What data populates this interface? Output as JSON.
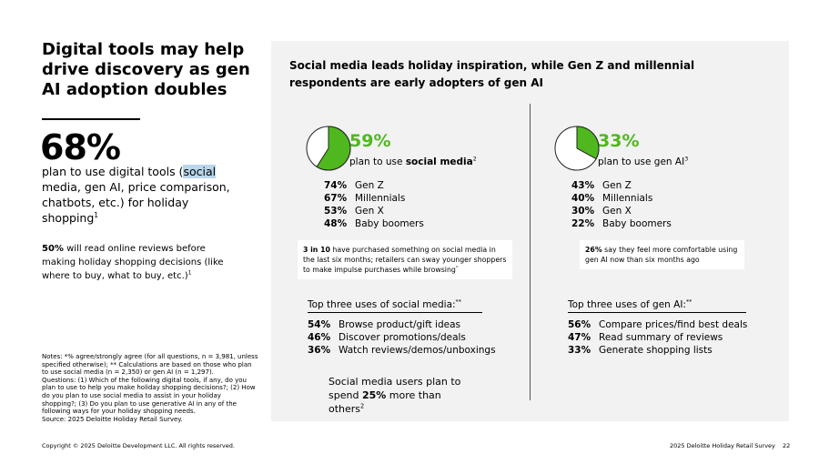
{
  "left": {
    "title": "Digital tools may help drive discovery as gen AI adoption doubles",
    "stat": "68%",
    "stat_desc": {
      "pre": "plan to use digital tools (",
      "highlight": "social",
      "post": " media, gen AI, price comparison, chatbots, etc.) for holiday shopping",
      "sup": "1"
    },
    "secondary": {
      "bold": "50%",
      "text": " will read online reviews before making holiday shopping decisions (like where to buy, what to buy, etc.)",
      "sup": "1"
    },
    "notes": [
      "Notes: *% agree/strongly agree (for all questions, n = 3,981, unless",
      "specified otherwise); ** Calculations are based on those who plan",
      "to use social media (n = 2,350) or gen AI (n = 1,297).",
      "Questions: (1) Which of the following digital tools, if any, do you",
      "plan to use to help you make holiday shopping decisions?; (2) How",
      "do you plan to use social media to assist in your holiday",
      "shopping?; (3) Do you plan to use generative AI in any of the",
      "following ways for your holiday shopping needs.",
      "Source: 2025 Deloitte Holiday Retail Survey."
    ]
  },
  "panel": {
    "heading": "Social media leads holiday inspiration, while Gen Z and millennial respondents are early adopters of gen AI",
    "social": {
      "value": 59,
      "label": "59%",
      "desc_pre": "plan to use ",
      "desc_bold": "social media",
      "sup": "2",
      "breakdown": [
        {
          "pct": "74%",
          "label": "Gen Z"
        },
        {
          "pct": "67%",
          "label": "Millennials"
        },
        {
          "pct": "53%",
          "label": "Gen X"
        },
        {
          "pct": "48%",
          "label": "Baby boomers"
        }
      ],
      "callout": {
        "bold": "3 in 10",
        "text": " have purchased something on social media in the last six months; retailers can sway younger shoppers to make impulse purchases while browsing",
        "sup": "*"
      },
      "uses_title": "Top three uses of social media:",
      "uses_sup": "**",
      "uses": [
        {
          "pct": "54%",
          "label": "Browse product/gift ideas"
        },
        {
          "pct": "46%",
          "label": "Discover promotions/deals"
        },
        {
          "pct": "36%",
          "label": "Watch reviews/demos/unboxings"
        }
      ]
    },
    "genai": {
      "value": 33,
      "label": "33%",
      "desc_pre": "plan to use gen AI",
      "sup": "3",
      "breakdown": [
        {
          "pct": "43%",
          "label": "Gen Z"
        },
        {
          "pct": "40%",
          "label": "Millennials"
        },
        {
          "pct": "30%",
          "label": "Gen X"
        },
        {
          "pct": "22%",
          "label": "Baby boomers"
        }
      ],
      "callout": {
        "bold": "26%",
        "text": " say they feel more comfortable using gen AI now than six months ago"
      },
      "uses_title": "Top three uses of gen AI:",
      "uses_sup": "**",
      "uses": [
        {
          "pct": "56%",
          "label": "Compare prices/find best deals"
        },
        {
          "pct": "47%",
          "label": "Read summary of reviews"
        },
        {
          "pct": "33%",
          "label": "Generate shopping lists"
        }
      ]
    },
    "closing": {
      "pre": "Social media users plan to spend ",
      "bold": "25%",
      "post": " more than others",
      "sup": "2"
    }
  },
  "footer": {
    "copyright": "Copyright © 2025 Deloitte Development LLC. All rights reserved.",
    "report": "2025 Deloitte Holiday Retail Survey",
    "page": "22"
  }
}
